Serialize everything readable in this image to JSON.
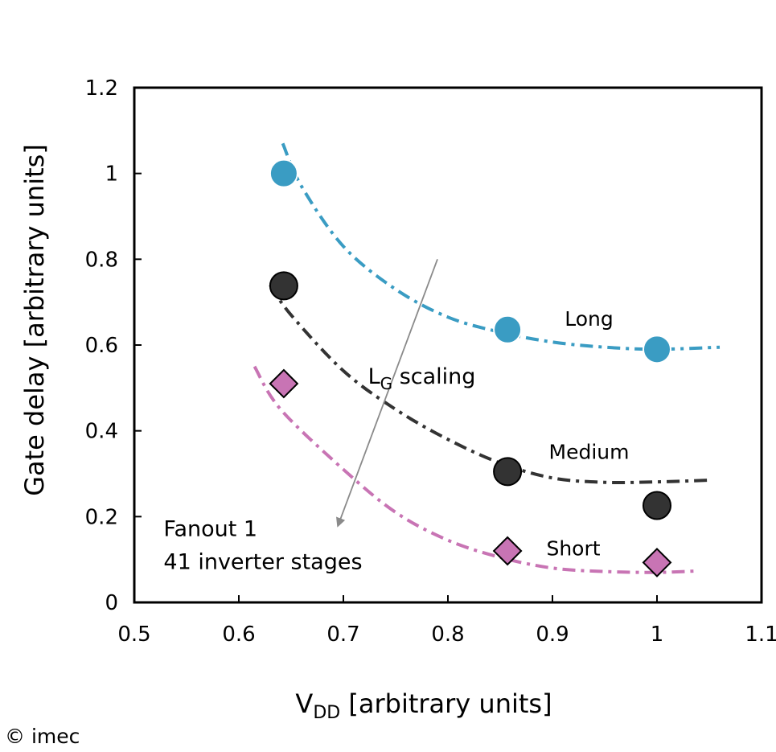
{
  "chart_data": {
    "type": "scatter",
    "xlabel": {
      "main": "V",
      "sub": "DD",
      "rest": " [arbitrary units]"
    },
    "ylabel": "Gate delay [arbitrary units]",
    "xlim": [
      0.5,
      1.1
    ],
    "ylim": [
      0,
      1.2
    ],
    "x_ticks": [
      {
        "value": 0.5,
        "label": "0.5"
      },
      {
        "value": 0.6,
        "label": "0.6"
      },
      {
        "value": 0.7,
        "label": "0.7"
      },
      {
        "value": 0.8,
        "label": "0.8"
      },
      {
        "value": 0.9,
        "label": "0.9"
      },
      {
        "value": 1.0,
        "label": "1"
      },
      {
        "value": 1.1,
        "label": "1.1"
      }
    ],
    "y_ticks": [
      {
        "value": 0,
        "label": "0"
      },
      {
        "value": 0.2,
        "label": "0.2"
      },
      {
        "value": 0.4,
        "label": "0.4"
      },
      {
        "value": 0.6,
        "label": "0.6"
      },
      {
        "value": 0.8,
        "label": "0.8"
      },
      {
        "value": 1.0,
        "label": "1"
      },
      {
        "value": 1.2,
        "label": "1.2"
      }
    ],
    "grid": false,
    "series": [
      {
        "name": "Long",
        "marker": "circle",
        "color": "#3a9cc3",
        "points": [
          [
            0.643,
            1.0
          ],
          [
            0.857,
            0.636
          ],
          [
            1.0,
            0.59
          ]
        ],
        "fit": [
          [
            0.642,
            1.07
          ],
          [
            0.66,
            0.97
          ],
          [
            0.7,
            0.83
          ],
          [
            0.75,
            0.73
          ],
          [
            0.8,
            0.665
          ],
          [
            0.85,
            0.63
          ],
          [
            0.9,
            0.607
          ],
          [
            0.95,
            0.595
          ],
          [
            1.0,
            0.59
          ],
          [
            1.06,
            0.595
          ]
        ]
      },
      {
        "name": "Medium",
        "marker": "circle",
        "color": "#333333",
        "points": [
          [
            0.643,
            0.738
          ],
          [
            0.857,
            0.305
          ],
          [
            1.0,
            0.226
          ]
        ],
        "fit": [
          [
            0.63,
            0.74
          ],
          [
            0.65,
            0.67
          ],
          [
            0.7,
            0.54
          ],
          [
            0.75,
            0.45
          ],
          [
            0.8,
            0.38
          ],
          [
            0.85,
            0.325
          ],
          [
            0.9,
            0.29
          ],
          [
            0.95,
            0.28
          ],
          [
            1.0,
            0.281
          ],
          [
            1.05,
            0.285
          ]
        ]
      },
      {
        "name": "Short",
        "marker": "diamond",
        "color": "#c874b4",
        "points": [
          [
            0.643,
            0.51
          ],
          [
            0.857,
            0.12
          ],
          [
            1.0,
            0.093
          ]
        ],
        "fit": [
          [
            0.615,
            0.55
          ],
          [
            0.64,
            0.45
          ],
          [
            0.7,
            0.31
          ],
          [
            0.75,
            0.21
          ],
          [
            0.8,
            0.145
          ],
          [
            0.85,
            0.105
          ],
          [
            0.9,
            0.08
          ],
          [
            0.95,
            0.072
          ],
          [
            1.0,
            0.07
          ],
          [
            1.035,
            0.073
          ]
        ]
      }
    ],
    "annotations": {
      "curve_labels": [
        {
          "text": "Long",
          "x": 0.935,
          "y": 0.645
        },
        {
          "text": "Medium",
          "x": 0.935,
          "y": 0.335
        },
        {
          "text": "Short",
          "x": 0.92,
          "y": 0.11
        }
      ],
      "scaling_label": {
        "main": "L",
        "sub": "G",
        "rest": " scaling",
        "x": 0.775,
        "y": 0.51
      },
      "arrow": {
        "from": [
          0.79,
          0.8
        ],
        "to": [
          0.695,
          0.18
        ],
        "color": "#8a8a8a"
      },
      "note_lines": [
        {
          "text": "Fanout 1",
          "x": 0.528,
          "y": 0.155
        },
        {
          "text": "41 inverter stages",
          "x": 0.528,
          "y": 0.078
        }
      ]
    }
  },
  "footer": {
    "copyright": "© imec"
  }
}
